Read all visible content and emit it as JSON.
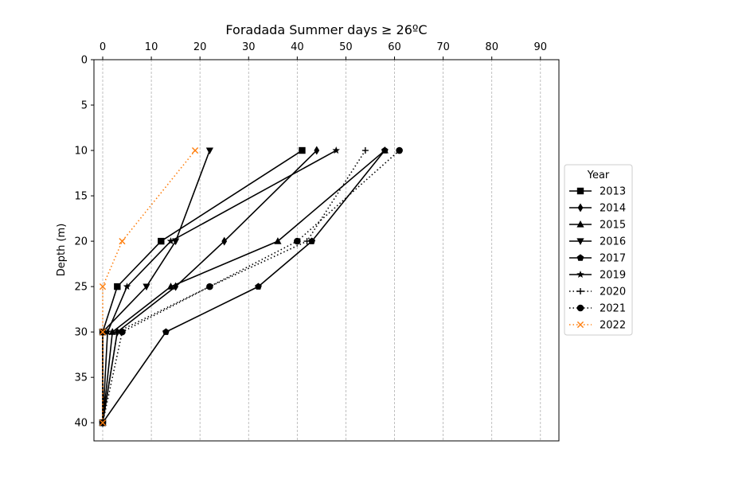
{
  "chart_data": {
    "type": "line",
    "title": "Foradada Summer days ≥ 26ºC",
    "xlabel": "",
    "ylabel": "Depth (m)",
    "xlim": [
      -1.8,
      93.8
    ],
    "ylim": [
      42,
      0
    ],
    "x_ticks": [
      0,
      10,
      20,
      30,
      40,
      50,
      60,
      70,
      80,
      90
    ],
    "y_ticks": [
      0,
      5,
      10,
      15,
      20,
      25,
      30,
      35,
      40
    ],
    "x_axis_position": "top",
    "grid": "vertical dashed",
    "legend": {
      "title": "Year",
      "placement": "right"
    },
    "depths": [
      10,
      20,
      25,
      30,
      40
    ],
    "series": [
      {
        "name": "2013",
        "values": [
          41,
          12,
          3,
          0,
          0
        ],
        "marker": "square",
        "linestyle": "solid",
        "color": "#000000"
      },
      {
        "name": "2014",
        "values": [
          44,
          25,
          15,
          3,
          0
        ],
        "marker": "thin_diamond",
        "linestyle": "solid",
        "color": "#000000"
      },
      {
        "name": "2015",
        "values": [
          58,
          36,
          14,
          2,
          0
        ],
        "marker": "triangle_up",
        "linestyle": "solid",
        "color": "#000000"
      },
      {
        "name": "2016",
        "values": [
          22,
          15,
          9,
          0,
          0
        ],
        "marker": "triangle_down",
        "linestyle": "solid",
        "color": "#000000"
      },
      {
        "name": "2017",
        "values": [
          58,
          43,
          32,
          13,
          0
        ],
        "marker": "pentagon",
        "linestyle": "solid",
        "color": "#000000"
      },
      {
        "name": "2019",
        "values": [
          48,
          14,
          5,
          1,
          0
        ],
        "marker": "star",
        "linestyle": "solid",
        "color": "#000000"
      },
      {
        "name": "2020",
        "values": [
          54,
          42,
          22,
          3,
          0
        ],
        "marker": "plus",
        "linestyle": "dotted",
        "color": "#000000"
      },
      {
        "name": "2021",
        "values": [
          61,
          40,
          22,
          4,
          0
        ],
        "marker": "circle",
        "linestyle": "dotted",
        "color": "#000000"
      },
      {
        "name": "2022",
        "values": [
          19,
          4,
          0,
          0,
          0
        ],
        "marker": "x",
        "linestyle": "dotted",
        "color": "#ff7f0e"
      }
    ]
  }
}
